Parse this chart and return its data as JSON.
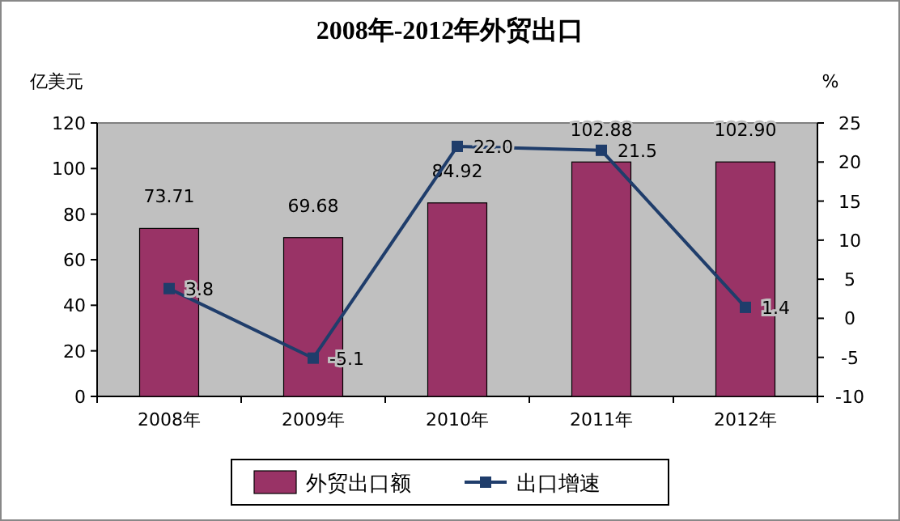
{
  "chart_data": {
    "type": "bar",
    "title": "2008年-2012年外贸出口",
    "categories": [
      "2008年",
      "2009年",
      "2010年",
      "2011年",
      "2012年"
    ],
    "ylabel": "亿美元",
    "y2label": "%",
    "ylim": [
      0,
      120
    ],
    "yticks": [
      0,
      20,
      40,
      60,
      80,
      100,
      120
    ],
    "y2lim": [
      -10,
      25
    ],
    "y2ticks": [
      -10,
      -5,
      0,
      5,
      10,
      15,
      20,
      25
    ],
    "legend": "bottom",
    "series": [
      {
        "name": "外贸出口额",
        "color": "#993366",
        "values": [
          73.71,
          69.68,
          84.92,
          102.88,
          102.9
        ],
        "value_labels": [
          "73.71",
          "69.68",
          "84.92",
          "102.88",
          "102.90"
        ]
      },
      {
        "name": "出口增速",
        "type": "line",
        "axis": "y2",
        "color": "#1f3d6b",
        "marker": "square",
        "values": [
          3.8,
          -5.1,
          22.0,
          21.5,
          1.4
        ],
        "value_labels": [
          "3.8",
          "-5.1",
          "22.0",
          "21.5",
          "1.4"
        ]
      }
    ]
  }
}
